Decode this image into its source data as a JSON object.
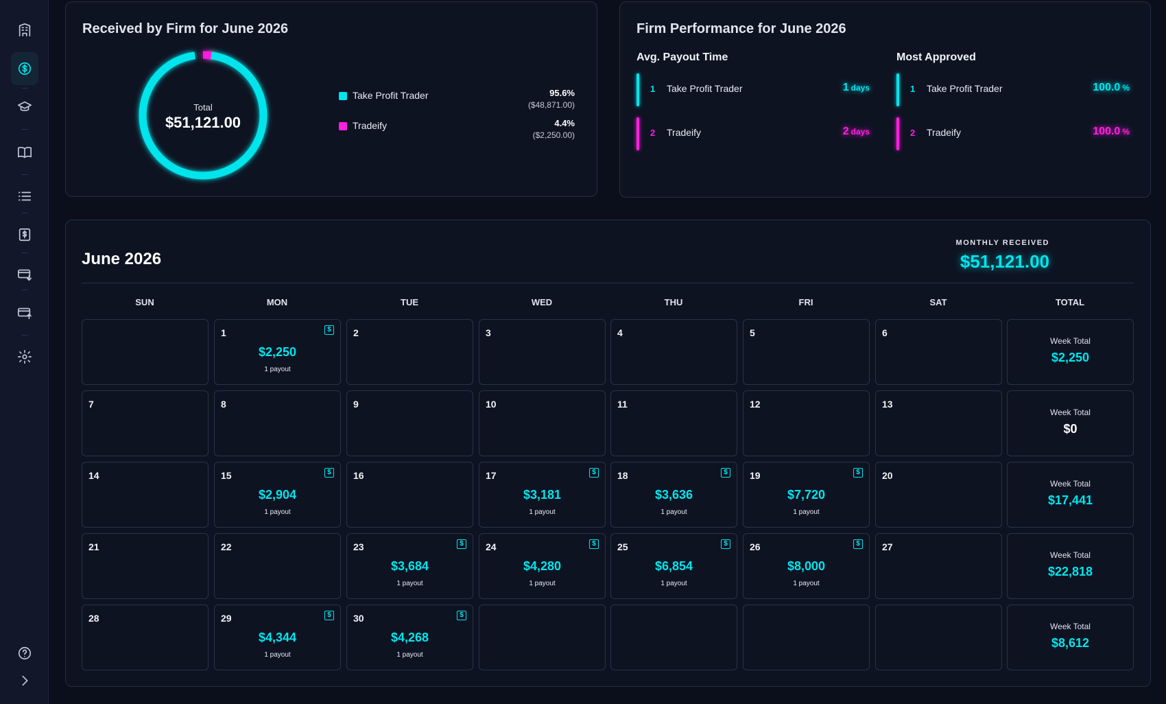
{
  "sidebar": {
    "items": [
      {
        "icon": "building-icon",
        "active": false
      },
      {
        "icon": "dollar-circle-icon",
        "active": true
      },
      {
        "icon": "graduation-cap-icon",
        "active": false
      },
      {
        "icon": "book-open-icon",
        "active": false
      },
      {
        "icon": "list-icon",
        "active": false
      },
      {
        "icon": "dollar-document-icon",
        "active": false
      },
      {
        "icon": "card-download-icon",
        "active": false
      },
      {
        "icon": "card-upload-icon",
        "active": false
      },
      {
        "icon": "gear-icon",
        "active": false
      }
    ],
    "bottom": [
      {
        "icon": "help-icon"
      },
      {
        "icon": "chevron-right-icon"
      }
    ]
  },
  "received": {
    "title": "Received by Firm for June 2026",
    "total_label": "Total",
    "total_value": "$51,121.00",
    "legend": [
      {
        "name": "Take Profit Trader",
        "pct": "95.6%",
        "amount": "($48,871.00)",
        "color": "#00e5ec",
        "share": 0.956
      },
      {
        "name": "Tradeify",
        "pct": "4.4%",
        "amount": "($2,250.00)",
        "color": "#ff1fe0",
        "share": 0.044
      }
    ]
  },
  "performance": {
    "title": "Firm Performance for June 2026",
    "avg_payout": {
      "heading": "Avg. Payout Time",
      "rows": [
        {
          "rank": "1",
          "name": "Take Profit Trader",
          "value": "1",
          "unit": "days",
          "color": "#00e5ec"
        },
        {
          "rank": "2",
          "name": "Tradeify",
          "value": "2",
          "unit": "days",
          "color": "#ff1fe0"
        }
      ]
    },
    "most_approved": {
      "heading": "Most Approved",
      "rows": [
        {
          "rank": "1",
          "name": "Take Profit Trader",
          "value": "100.0",
          "unit": "%",
          "color": "#00e5ec"
        },
        {
          "rank": "2",
          "name": "Tradeify",
          "value": "100.0",
          "unit": "%",
          "color": "#ff1fe0"
        }
      ]
    }
  },
  "calendar": {
    "title": "June 2026",
    "monthly_label": "MONTHLY RECEIVED",
    "monthly_value": "$51,121.00",
    "days_of_week": [
      "SUN",
      "MON",
      "TUE",
      "WED",
      "THU",
      "FRI",
      "SAT",
      "TOTAL"
    ],
    "week_total_label": "Week Total",
    "payout_sub": "1 payout",
    "payout_icon": "dollar-receipt-icon",
    "weeks": [
      {
        "days": [
          null,
          {
            "d": "1",
            "amt": "$2,250"
          },
          {
            "d": "2"
          },
          {
            "d": "3"
          },
          {
            "d": "4"
          },
          {
            "d": "5"
          },
          {
            "d": "6"
          }
        ],
        "total": "$2,250"
      },
      {
        "days": [
          {
            "d": "7"
          },
          {
            "d": "8"
          },
          {
            "d": "9"
          },
          {
            "d": "10"
          },
          {
            "d": "11"
          },
          {
            "d": "12"
          },
          {
            "d": "13"
          }
        ],
        "total": "$0"
      },
      {
        "days": [
          {
            "d": "14"
          },
          {
            "d": "15",
            "amt": "$2,904"
          },
          {
            "d": "16"
          },
          {
            "d": "17",
            "amt": "$3,181"
          },
          {
            "d": "18",
            "amt": "$3,636"
          },
          {
            "d": "19",
            "amt": "$7,720"
          },
          {
            "d": "20"
          }
        ],
        "total": "$17,441"
      },
      {
        "days": [
          {
            "d": "21"
          },
          {
            "d": "22"
          },
          {
            "d": "23",
            "amt": "$3,684"
          },
          {
            "d": "24",
            "amt": "$4,280"
          },
          {
            "d": "25",
            "amt": "$6,854"
          },
          {
            "d": "26",
            "amt": "$8,000"
          },
          {
            "d": "27"
          }
        ],
        "total": "$22,818"
      },
      {
        "days": [
          {
            "d": "28"
          },
          {
            "d": "29",
            "amt": "$4,344"
          },
          {
            "d": "30",
            "amt": "$4,268"
          },
          null,
          null,
          null,
          null
        ],
        "total": "$8,612"
      }
    ]
  }
}
